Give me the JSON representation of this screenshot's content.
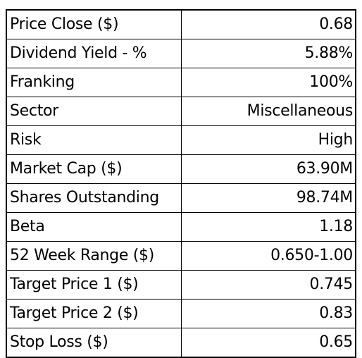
{
  "rows": [
    {
      "label": "Price Close ($)",
      "value": "0.68"
    },
    {
      "label": "Dividend Yield - %",
      "value": "5.88%"
    },
    {
      "label": "Franking",
      "value": "100%"
    },
    {
      "label": "Sector",
      "value": "Miscellaneous"
    },
    {
      "label": "Risk",
      "value": "High"
    },
    {
      "label": "Market Cap ($)",
      "value": "63.90M"
    },
    {
      "label": "Shares Outstanding",
      "value": "98.74M"
    },
    {
      "label": "Beta",
      "value": "1.18"
    },
    {
      "label": "52 Week Range ($)",
      "value": "0.650-1.00"
    },
    {
      "label": "Target Price 1 ($)",
      "value": "0.745"
    },
    {
      "label": "Target Price 2 ($)",
      "value": "0.83"
    },
    {
      "label": "Stop Loss ($)",
      "value": "0.65"
    }
  ]
}
